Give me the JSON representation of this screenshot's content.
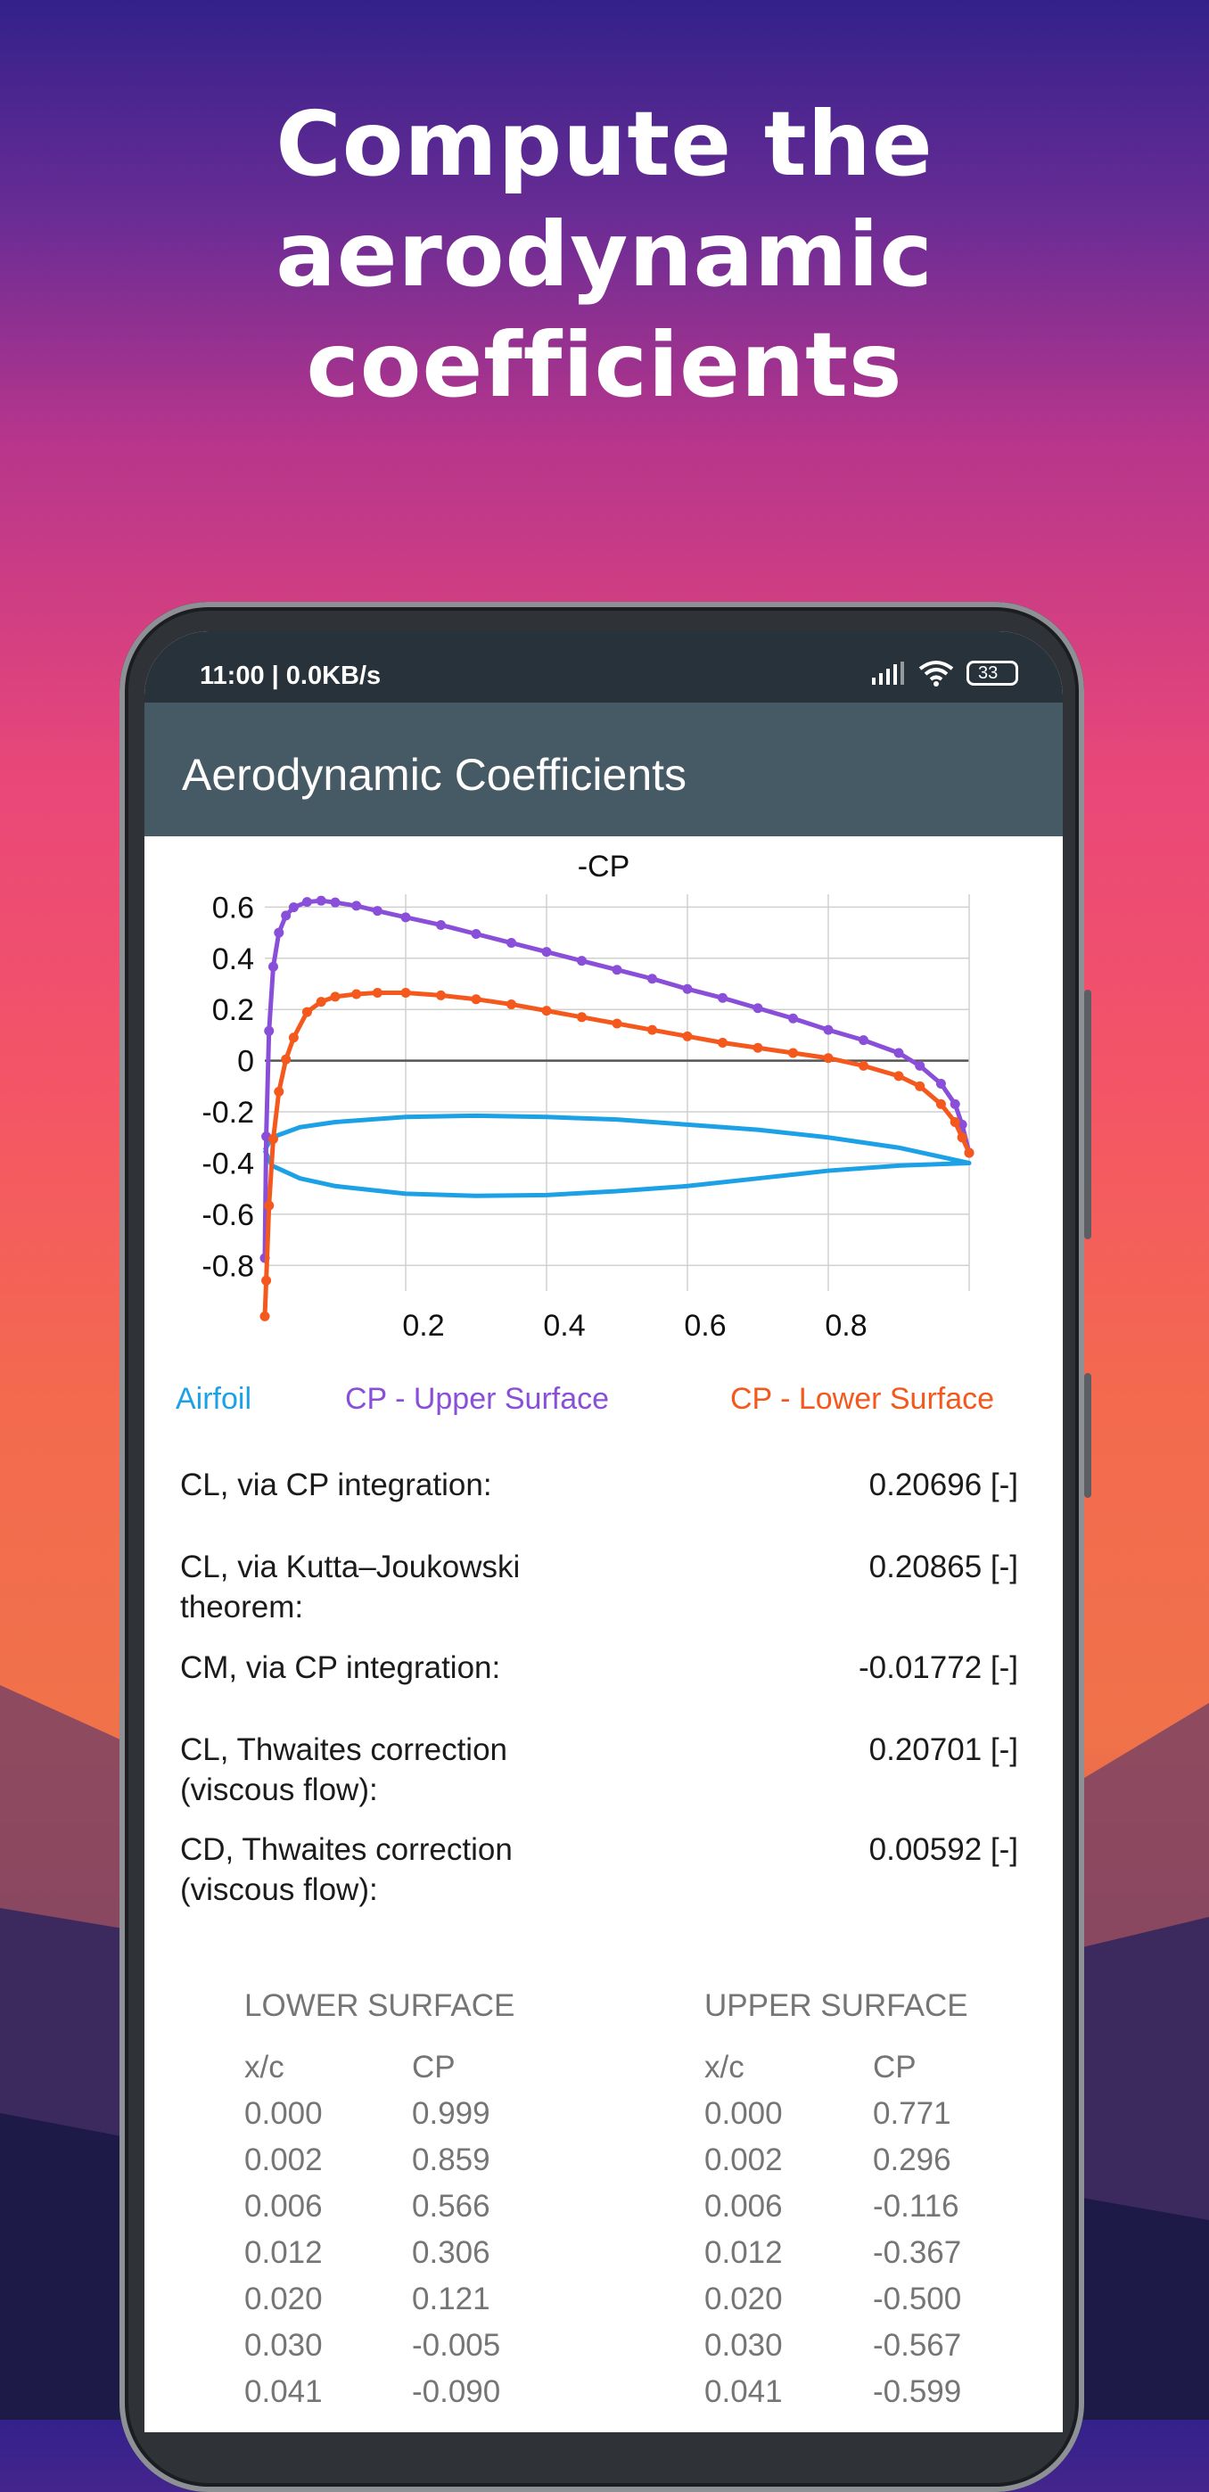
{
  "headline": {
    "line1": "Compute the",
    "line2": "aerodynamic coefficients"
  },
  "status_bar": {
    "time": "11:00 | 0.0KB/s",
    "battery": "33"
  },
  "app_bar": {
    "title": "Aerodynamic Coefficients"
  },
  "chart_data": {
    "type": "line",
    "title": "-CP",
    "xlim": [
      0,
      1
    ],
    "ylim": [
      -0.9,
      0.65
    ],
    "x_ticks": [
      "0.2",
      "0.4",
      "0.6",
      "0.8"
    ],
    "y_ticks": [
      "0.6",
      "0.4",
      "0.2",
      "0",
      "-0.2",
      "-0.4",
      "-0.6",
      "-0.8"
    ],
    "grid": true,
    "series": [
      {
        "name": "Airfoil",
        "color": "#1da1e6",
        "x": [
          0,
          0.01,
          0.05,
          0.1,
          0.2,
          0.3,
          0.4,
          0.5,
          0.6,
          0.7,
          0.8,
          0.9,
          1.0,
          0.9,
          0.8,
          0.7,
          0.6,
          0.5,
          0.4,
          0.3,
          0.2,
          0.1,
          0.05,
          0.01,
          0
        ],
        "y": [
          -0.35,
          -0.3,
          -0.26,
          -0.24,
          -0.22,
          -0.215,
          -0.22,
          -0.23,
          -0.25,
          -0.27,
          -0.3,
          -0.34,
          -0.4,
          -0.41,
          -0.43,
          -0.46,
          -0.49,
          -0.51,
          -0.525,
          -0.528,
          -0.52,
          -0.49,
          -0.46,
          -0.41,
          -0.35
        ]
      },
      {
        "name": "CP - Upper Surface",
        "color": "#8a4fd8",
        "x": [
          0,
          0.002,
          0.006,
          0.012,
          0.02,
          0.03,
          0.041,
          0.06,
          0.08,
          0.1,
          0.13,
          0.16,
          0.2,
          0.25,
          0.3,
          0.35,
          0.4,
          0.45,
          0.5,
          0.55,
          0.6,
          0.65,
          0.7,
          0.75,
          0.8,
          0.85,
          0.9,
          0.93,
          0.96,
          0.98,
          0.99,
          1.0
        ],
        "y": [
          -0.771,
          -0.296,
          0.116,
          0.367,
          0.5,
          0.567,
          0.599,
          0.62,
          0.625,
          0.618,
          0.605,
          0.585,
          0.56,
          0.53,
          0.495,
          0.46,
          0.425,
          0.39,
          0.355,
          0.32,
          0.28,
          0.245,
          0.205,
          0.165,
          0.12,
          0.08,
          0.03,
          -0.02,
          -0.09,
          -0.17,
          -0.25,
          -0.36
        ]
      },
      {
        "name": "CP - Lower Surface",
        "color": "#f4581c",
        "x": [
          0,
          0.002,
          0.006,
          0.012,
          0.02,
          0.03,
          0.041,
          0.06,
          0.08,
          0.1,
          0.13,
          0.16,
          0.2,
          0.25,
          0.3,
          0.35,
          0.4,
          0.45,
          0.5,
          0.55,
          0.6,
          0.65,
          0.7,
          0.75,
          0.8,
          0.85,
          0.9,
          0.93,
          0.96,
          0.98,
          0.99,
          1.0
        ],
        "y": [
          -0.999,
          -0.859,
          -0.566,
          -0.306,
          -0.121,
          0.005,
          0.09,
          0.19,
          0.23,
          0.25,
          0.26,
          0.265,
          0.265,
          0.255,
          0.24,
          0.22,
          0.195,
          0.17,
          0.145,
          0.12,
          0.095,
          0.07,
          0.05,
          0.03,
          0.01,
          -0.02,
          -0.06,
          -0.1,
          -0.17,
          -0.24,
          -0.3,
          -0.36
        ]
      }
    ]
  },
  "legend": {
    "airfoil": "Airfoil",
    "upper": "CP - Upper Surface",
    "lower": "CP - Lower Surface"
  },
  "results": [
    {
      "label": "CL, via CP integration:",
      "value": "0.20696 [-]"
    },
    {
      "label": "CL, via Kutta–Joukowski theorem:",
      "value": "0.20865 [-]"
    },
    {
      "label": "CM, via CP integration:",
      "value": "-0.01772 [-]"
    },
    {
      "label": "CL, Thwaites correction (viscous flow):",
      "value": "0.20701 [-]"
    },
    {
      "label": "CD, Thwaites correction (viscous flow):",
      "value": "0.00592 [-]"
    }
  ],
  "lower_table": {
    "title": "LOWER SURFACE",
    "col1": "x/c",
    "col2": "CP",
    "xc": [
      "0.000",
      "0.002",
      "0.006",
      "0.012",
      "0.020",
      "0.030",
      "0.041"
    ],
    "cp": [
      "0.999",
      "0.859",
      "0.566",
      "0.306",
      "0.121",
      "-0.005",
      "-0.090"
    ]
  },
  "upper_table": {
    "title": "UPPER SURFACE",
    "col1": "x/c",
    "col2": "CP",
    "xc": [
      "0.000",
      "0.002",
      "0.006",
      "0.012",
      "0.020",
      "0.030",
      "0.041"
    ],
    "cp": [
      "0.771",
      "0.296",
      "-0.116",
      "-0.367",
      "-0.500",
      "-0.567",
      "-0.599"
    ]
  }
}
